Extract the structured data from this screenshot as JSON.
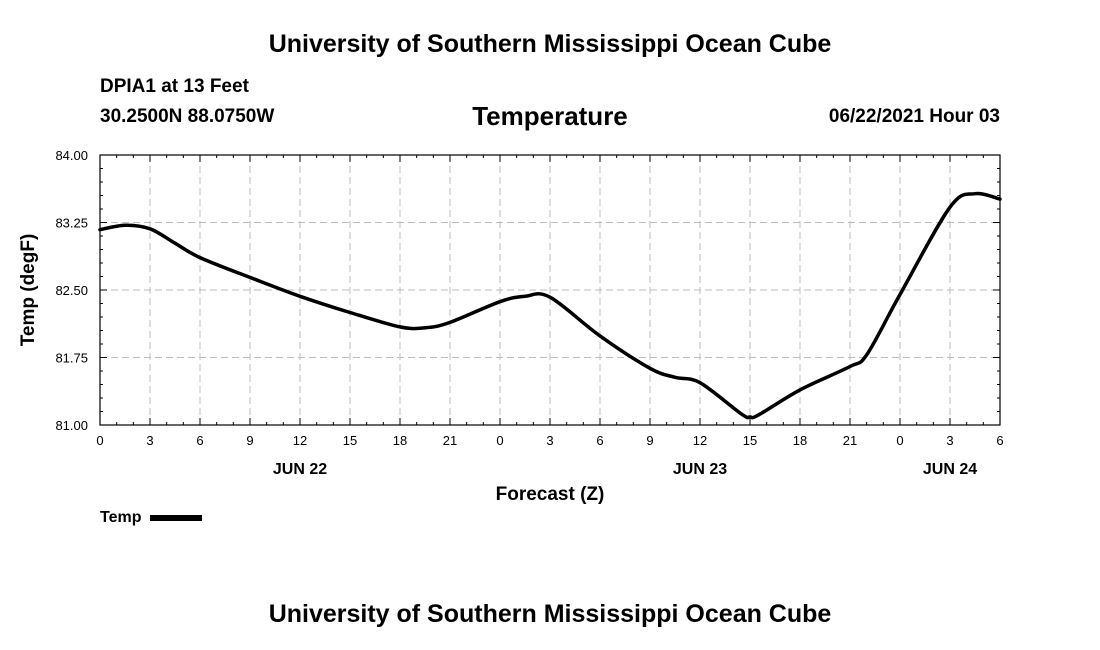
{
  "header": {
    "top": "University of Southern Mississippi Ocean Cube",
    "bottom": "University of Southern Mississippi Ocean Cube"
  },
  "station": {
    "name": "DPIA1 at 13 Feet",
    "coords": "30.2500N  88.0750W"
  },
  "datetime": "06/22/2021 Hour 03",
  "chart_data": {
    "type": "line",
    "title": "Temperature",
    "xlabel": "Forecast (Z)",
    "ylabel": "Temp (degF)",
    "xlim": [
      0,
      54
    ],
    "ylim": [
      81.0,
      84.0
    ],
    "grid": true,
    "legend_position": "bottom-left",
    "y_ticks": [
      "81.00",
      "81.75",
      "82.50",
      "83.25",
      "84.00"
    ],
    "y_tick_values": [
      81.0,
      81.75,
      82.5,
      83.25,
      84.0
    ],
    "x_ticks": [
      "0",
      "3",
      "6",
      "9",
      "12",
      "15",
      "18",
      "21",
      "0",
      "3",
      "6",
      "9",
      "12",
      "15",
      "18",
      "21",
      "0",
      "3",
      "6"
    ],
    "x_tick_values": [
      0,
      3,
      6,
      9,
      12,
      15,
      18,
      21,
      24,
      27,
      30,
      33,
      36,
      39,
      42,
      45,
      48,
      51,
      54
    ],
    "day_labels": [
      {
        "label": "JUN 22",
        "x": 12
      },
      {
        "label": "JUN 23",
        "x": 36
      },
      {
        "label": "JUN 24",
        "x": 51
      }
    ],
    "series": [
      {
        "name": "Temp",
        "color": "#000000",
        "x": [
          0,
          1.5,
          3,
          4.5,
          6,
          9,
          12,
          15,
          18,
          19.5,
          21,
          24,
          25.5,
          27,
          30,
          33,
          34.5,
          36,
          38.5,
          39,
          39.5,
          42,
          45,
          46,
          48,
          51,
          52.5,
          54
        ],
        "values": [
          83.17,
          83.22,
          83.18,
          83.02,
          82.86,
          82.64,
          82.43,
          82.25,
          82.09,
          82.08,
          82.14,
          82.37,
          82.43,
          82.42,
          81.99,
          81.63,
          81.53,
          81.47,
          81.12,
          81.09,
          81.11,
          81.39,
          81.65,
          81.78,
          82.45,
          83.42,
          83.57,
          83.51
        ]
      }
    ]
  }
}
